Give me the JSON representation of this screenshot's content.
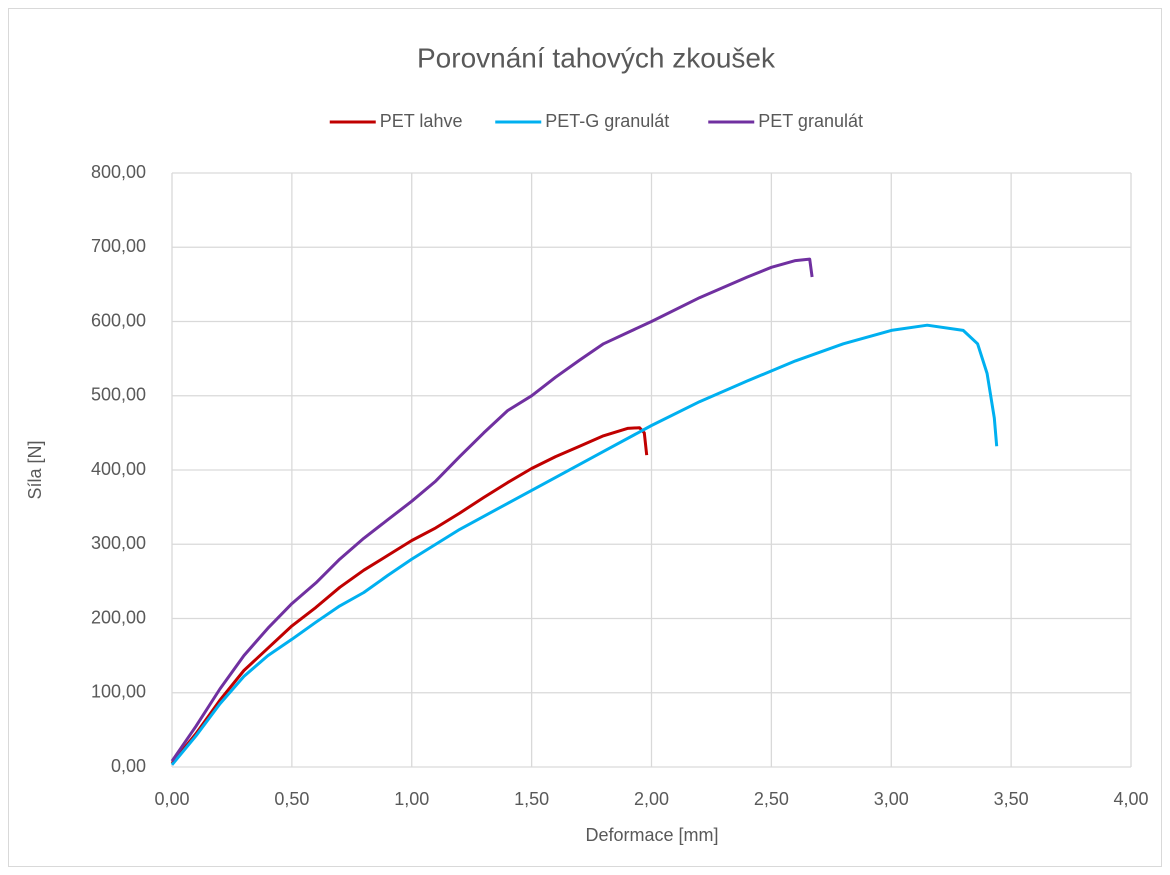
{
  "chart_data": {
    "type": "line",
    "title": "Porovnání tahových zkoušek",
    "x_label": "Deformace [mm]",
    "y_label": "Síla [N]",
    "xlim": [
      0,
      4
    ],
    "ylim": [
      0,
      800
    ],
    "grid": true,
    "legend": "top",
    "xticks": [
      {
        "value": 0,
        "label": "0,00"
      },
      {
        "value": 0.5,
        "label": "0,50"
      },
      {
        "value": 1,
        "label": "1,00"
      },
      {
        "value": 1.5,
        "label": "1,50"
      },
      {
        "value": 2,
        "label": "2,00"
      },
      {
        "value": 2.5,
        "label": "2,50"
      },
      {
        "value": 3,
        "label": "3,00"
      },
      {
        "value": 3.5,
        "label": "3,50"
      },
      {
        "value": 4,
        "label": "4,00"
      }
    ],
    "yticks": [
      {
        "value": 0,
        "label": "0,00"
      },
      {
        "value": 100,
        "label": "100,00"
      },
      {
        "value": 200,
        "label": "200,00"
      },
      {
        "value": 300,
        "label": "300,00"
      },
      {
        "value": 400,
        "label": "400,00"
      },
      {
        "value": 500,
        "label": "500,00"
      },
      {
        "value": 600,
        "label": "600,00"
      },
      {
        "value": 700,
        "label": "700,00"
      },
      {
        "value": 800,
        "label": "800,00"
      }
    ],
    "series": [
      {
        "name": "PET lahve",
        "color": "#c00000",
        "x": [
          0,
          0.1,
          0.2,
          0.3,
          0.4,
          0.5,
          0.6,
          0.7,
          0.8,
          0.9,
          1.0,
          1.1,
          1.2,
          1.3,
          1.4,
          1.5,
          1.6,
          1.7,
          1.8,
          1.9,
          1.95,
          1.97,
          1.98
        ],
        "values": [
          5,
          45,
          90,
          130,
          160,
          190,
          215,
          242,
          265,
          285,
          305,
          322,
          342,
          363,
          383,
          402,
          418,
          432,
          446,
          456,
          457,
          450,
          420
        ]
      },
      {
        "name": "PET-G granulát",
        "color": "#00b0f0",
        "x": [
          0,
          0.1,
          0.2,
          0.3,
          0.4,
          0.5,
          0.6,
          0.7,
          0.8,
          0.9,
          1.0,
          1.2,
          1.4,
          1.6,
          1.8,
          2.0,
          2.2,
          2.4,
          2.6,
          2.8,
          3.0,
          3.15,
          3.3,
          3.36,
          3.4,
          3.43,
          3.44
        ],
        "values": [
          3,
          42,
          85,
          122,
          150,
          172,
          195,
          217,
          235,
          258,
          280,
          320,
          355,
          390,
          425,
          460,
          492,
          520,
          547,
          570,
          588,
          595,
          588,
          570,
          530,
          470,
          432
        ]
      },
      {
        "name": "PET granulát",
        "color": "#7030a0",
        "x": [
          0,
          0.1,
          0.2,
          0.3,
          0.4,
          0.5,
          0.6,
          0.7,
          0.8,
          0.9,
          1.0,
          1.1,
          1.2,
          1.3,
          1.4,
          1.5,
          1.6,
          1.7,
          1.8,
          1.9,
          2.0,
          2.2,
          2.4,
          2.5,
          2.6,
          2.66,
          2.67
        ],
        "values": [
          8,
          55,
          105,
          150,
          187,
          220,
          248,
          280,
          308,
          333,
          358,
          385,
          418,
          450,
          480,
          500,
          525,
          548,
          570,
          585,
          600,
          632,
          660,
          673,
          682,
          684,
          660
        ]
      }
    ]
  }
}
